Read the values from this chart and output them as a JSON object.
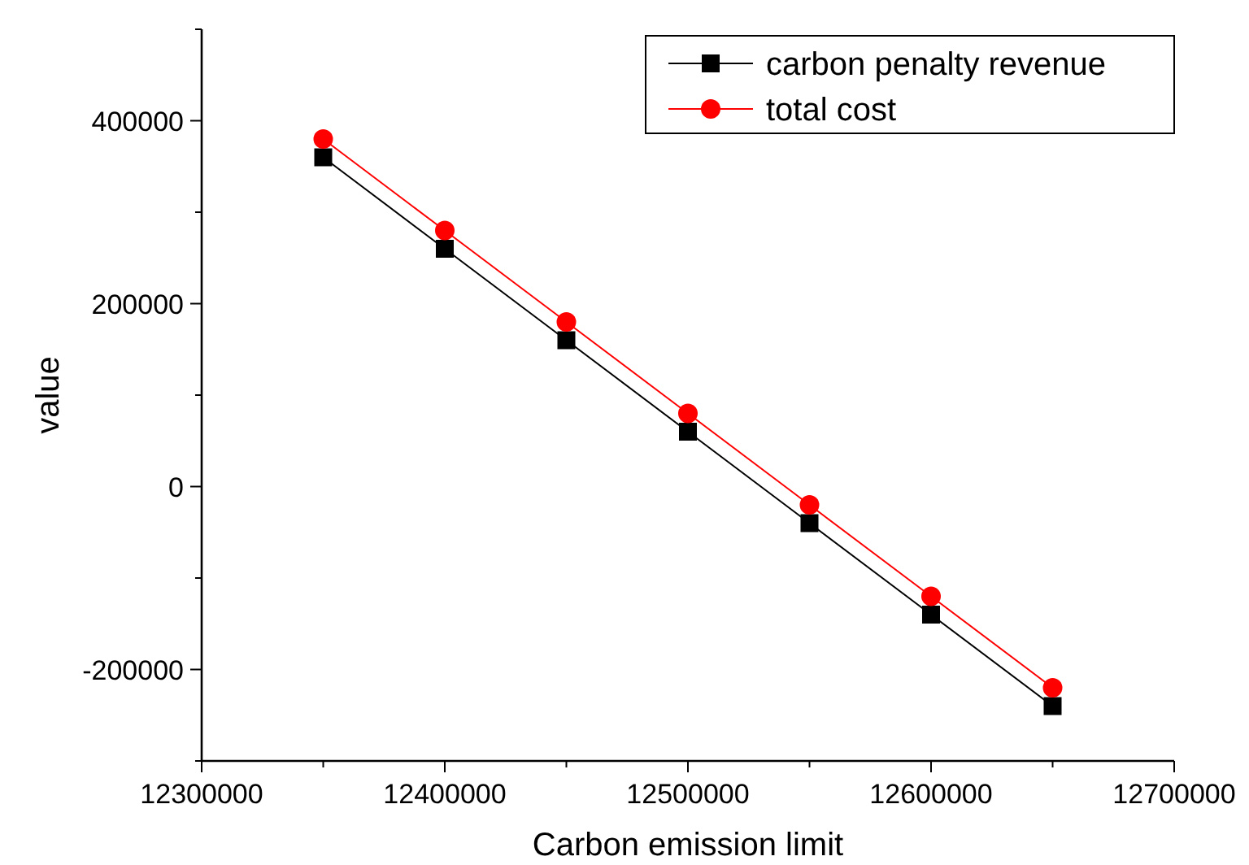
{
  "chart_data": {
    "type": "line",
    "xlabel": "Carbon emission limit",
    "ylabel": "value",
    "x": [
      12350000,
      12400000,
      12450000,
      12500000,
      12550000,
      12600000,
      12650000
    ],
    "series": [
      {
        "name": "carbon penalty revenue",
        "color": "#000000",
        "marker": "square",
        "values": [
          360000,
          260000,
          160000,
          60000,
          -40000,
          -140000,
          -240000
        ]
      },
      {
        "name": "total cost",
        "color": "#ff0000",
        "marker": "circle",
        "values": [
          380000,
          280000,
          180000,
          80000,
          -20000,
          -120000,
          -220000
        ]
      }
    ],
    "xlim": [
      12300000,
      12700000
    ],
    "xticks": [
      12300000,
      {
        "value": 12350000,
        "label": null
      },
      12400000,
      {
        "value": 12450000,
        "label": null
      },
      12500000,
      {
        "value": 12550000,
        "label": null
      },
      12600000,
      {
        "value": 12650000,
        "label": null
      },
      12700000
    ],
    "ylim": [
      -300000,
      500000
    ],
    "yticks": [
      {
        "value": -300000,
        "label": null
      },
      -200000,
      {
        "value": -100000,
        "label": null
      },
      0,
      {
        "value": 100000,
        "label": null
      },
      200000,
      {
        "value": 300000,
        "label": null
      },
      400000,
      {
        "value": 500000,
        "label": null
      }
    ],
    "grid": false,
    "legend": "top right",
    "line_style": "solid"
  }
}
